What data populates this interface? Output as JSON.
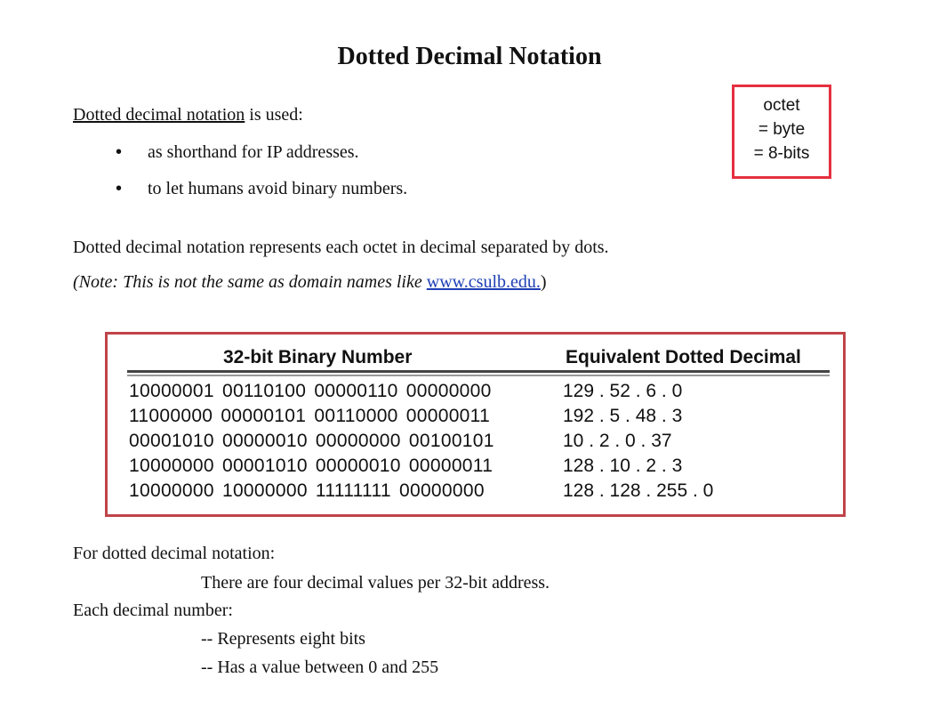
{
  "title": "Dotted Decimal Notation",
  "intro": {
    "underlined": "Dotted decimal notation",
    "rest": " is used:"
  },
  "bullets": [
    "as shorthand for IP addresses.",
    "to let humans avoid binary numbers."
  ],
  "bullet_glyph": "•",
  "octet_box": {
    "line1": "octet",
    "line2": "= byte",
    "line3": "= 8-bits",
    "border_color": "#e5303f"
  },
  "paragraph": "Dotted decimal notation represents each octet in decimal separated by dots.",
  "note": {
    "prefix": "(Note: This  is not the same as domain names like ",
    "link": "www.csulb.edu.",
    "suffix": ")"
  },
  "table": {
    "headers": {
      "binary": "32-bit Binary Number",
      "decimal": "Equivalent Dotted Decimal"
    },
    "rows": [
      {
        "binary": "10000001  00110100  00000110  00000000",
        "decimal": "129 . 52 . 6 . 0"
      },
      {
        "binary": "11000000  00000101  00110000  00000011",
        "decimal": "192 . 5 . 48 . 3"
      },
      {
        "binary": "00001010  00000010  00000000  00100101",
        "decimal": "10 . 2 . 0 . 37"
      },
      {
        "binary": "10000000  00001010  00000010  00000011",
        "decimal": "128 . 10 . 2 . 3"
      },
      {
        "binary": "10000000  10000000  11111111  00000000",
        "decimal": "128 . 128 . 255 . 0"
      }
    ],
    "border_color": "#c0444a"
  },
  "footer": {
    "line1": "For dotted decimal notation:",
    "line2": "There are four decimal values per 32-bit address.",
    "line3": "Each decimal number:",
    "line4": "-- Represents eight bits",
    "line5": "-- Has a value between 0 and 255"
  },
  "colors": {
    "link": "#1f3fb4"
  }
}
